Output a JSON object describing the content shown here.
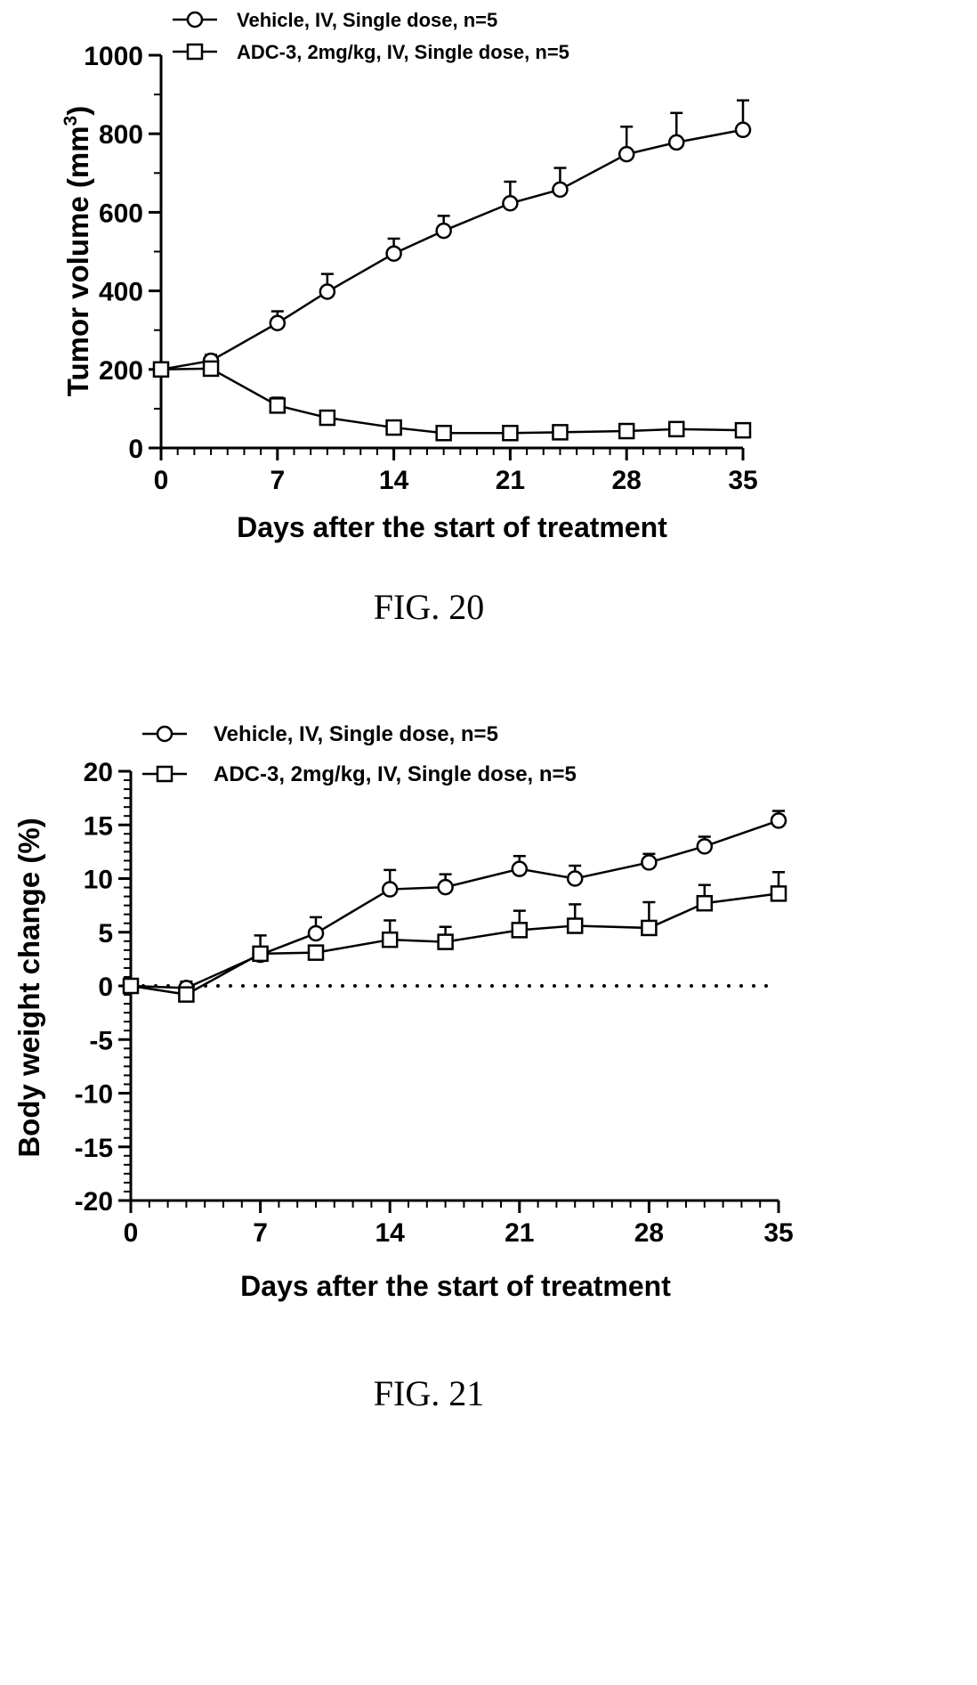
{
  "chart_data": [
    {
      "type": "line",
      "figure_label": "FIG. 20",
      "title": "",
      "xlabel": "Days after the start of treatment",
      "ylabel": "Tumor volume (mm",
      "ylabel_sup": "3",
      "ylabel_close": ")",
      "xlim": [
        0,
        35
      ],
      "ylim": [
        0,
        1000
      ],
      "xticks": [
        "0",
        "7",
        "14",
        "21",
        "28",
        "35"
      ],
      "yticks": [
        "0",
        "200",
        "400",
        "600",
        "800",
        "1000"
      ],
      "legend_position": "top",
      "series": [
        {
          "name": "Vehicle, IV, Single dose, n=5",
          "marker": "circle",
          "x": [
            0,
            3,
            7,
            10,
            14,
            17,
            21,
            24,
            28,
            31,
            35
          ],
          "y": [
            200,
            222,
            318,
            398,
            495,
            553,
            623,
            658,
            748,
            778,
            810
          ],
          "err": [
            0,
            15,
            30,
            45,
            38,
            38,
            55,
            55,
            70,
            75,
            75
          ]
        },
        {
          "name": "ADC-3, 2mg/kg, IV, Single dose, n=5",
          "marker": "square",
          "x": [
            0,
            3,
            7,
            10,
            14,
            17,
            21,
            24,
            28,
            31,
            35
          ],
          "y": [
            200,
            202,
            108,
            77,
            52,
            38,
            38,
            40,
            43,
            48,
            45
          ],
          "err": [
            0,
            10,
            20,
            0,
            0,
            0,
            0,
            0,
            0,
            0,
            0
          ]
        }
      ]
    },
    {
      "type": "line",
      "figure_label": "FIG. 21",
      "title": "",
      "xlabel": "Days after the start of treatment",
      "ylabel": "Body weight change (%)",
      "xlim": [
        0,
        35
      ],
      "ylim": [
        -20,
        20
      ],
      "xticks": [
        "0",
        "7",
        "14",
        "21",
        "28",
        "35"
      ],
      "yticks": [
        "-20",
        "-15",
        "-10",
        "-5",
        "0",
        "5",
        "10",
        "15",
        "20"
      ],
      "reference_line": 0,
      "legend_position": "top",
      "series": [
        {
          "name": "Vehicle, IV, Single dose, n=5",
          "marker": "circle",
          "x": [
            0,
            3,
            7,
            10,
            14,
            17,
            21,
            24,
            28,
            31,
            35
          ],
          "y": [
            0,
            -0.2,
            2.9,
            4.9,
            9.0,
            9.2,
            10.9,
            10.0,
            11.5,
            13.0,
            15.4
          ],
          "err": [
            0,
            0.6,
            1.8,
            1.5,
            1.8,
            1.2,
            1.2,
            1.2,
            0.8,
            0.9,
            0.9
          ]
        },
        {
          "name": "ADC-3, 2mg/kg, IV, Single dose, n=5",
          "marker": "square",
          "x": [
            0,
            3,
            7,
            10,
            14,
            17,
            21,
            24,
            28,
            31,
            35
          ],
          "y": [
            0,
            -0.8,
            3.0,
            3.1,
            4.3,
            4.1,
            5.2,
            5.6,
            5.4,
            7.7,
            8.6
          ],
          "err": [
            0,
            0,
            0,
            0,
            1.8,
            1.4,
            1.8,
            2.0,
            2.4,
            1.7,
            2.0
          ]
        }
      ]
    }
  ]
}
